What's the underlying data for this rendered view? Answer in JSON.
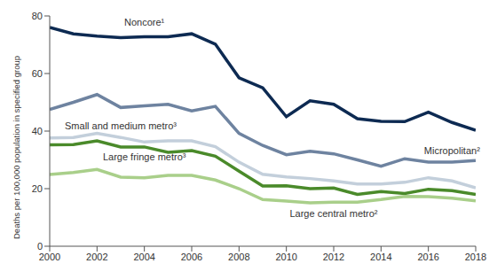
{
  "chart_data": {
    "type": "line",
    "y_label": "Deaths per 100,000 population in specified group",
    "x": [
      2000,
      2001,
      2002,
      2003,
      2004,
      2005,
      2006,
      2007,
      2008,
      2009,
      2010,
      2011,
      2012,
      2013,
      2014,
      2015,
      2016,
      2017,
      2018
    ],
    "xlim": [
      2000,
      2018
    ],
    "xticks": [
      2000,
      2002,
      2004,
      2006,
      2008,
      2010,
      2012,
      2014,
      2016,
      2018
    ],
    "ylim": [
      0,
      80
    ],
    "yticks": [
      0,
      20,
      40,
      60,
      80
    ],
    "grid": false,
    "series": [
      {
        "name": "Noncore¹",
        "color": "#0d2a52",
        "values": [
          76,
          73.8,
          73,
          72.5,
          72.8,
          72.8,
          73.8,
          70.2,
          58.5,
          55,
          45,
          50.5,
          49.3,
          44.3,
          43.4,
          43.3,
          46.6,
          43,
          40.3
        ]
      },
      {
        "name": "Micropolitan²",
        "color": "#6e83a0",
        "values": [
          47.5,
          50,
          52.7,
          48.2,
          48.8,
          49.3,
          47,
          48.6,
          39.2,
          35,
          31.8,
          33,
          32.1,
          30,
          27.8,
          30.4,
          29.2,
          29.2,
          29.8
        ]
      },
      {
        "name": "Small and medium metro³",
        "color": "#c3cfdb",
        "values": [
          37.6,
          37.8,
          39.2,
          37.8,
          36.2,
          36.6,
          36.6,
          34.6,
          29.2,
          25,
          24.1,
          23.5,
          22.7,
          21.6,
          21.6,
          22.2,
          23.8,
          22.7,
          20.3
        ]
      },
      {
        "name": "Large fringe metro³",
        "color": "#4a8a2a",
        "values": [
          35.2,
          35.3,
          36.6,
          34.5,
          34.5,
          32.6,
          33.2,
          31.3,
          26.1,
          20.9,
          21,
          20,
          20.2,
          18,
          19,
          18.3,
          19.8,
          19.3,
          18
        ]
      },
      {
        "name": "Large central metro²",
        "color": "#a9cf8a",
        "values": [
          24.9,
          25.6,
          26.7,
          24,
          23.8,
          24.6,
          24.6,
          23,
          20,
          16.2,
          15.7,
          15.1,
          15.3,
          15.3,
          16.2,
          17.3,
          17.2,
          16.7,
          15.8
        ]
      }
    ]
  }
}
